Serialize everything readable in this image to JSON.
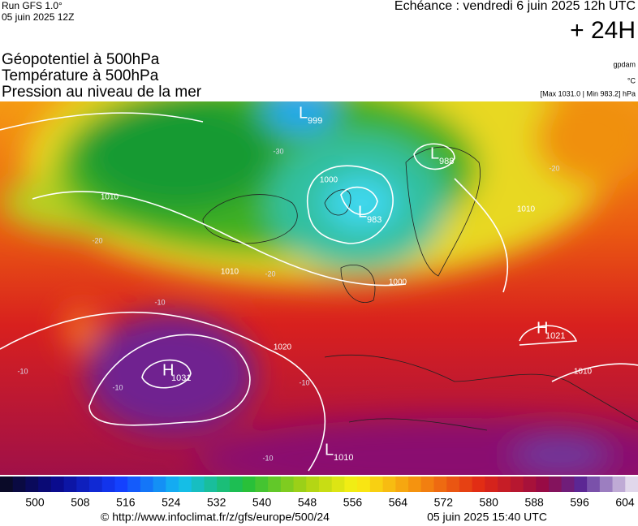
{
  "header": {
    "run": "Run GFS 1.0°",
    "run_date": "05 juin 2025 12Z",
    "echeance": "Echéance : vendredi 6 juin 2025 12h UTC",
    "lead": "+ 24H"
  },
  "legend": {
    "fields": [
      "Géopotentiel à 500hPa",
      "Température à 500hPa",
      "Pression au niveau de la mer"
    ],
    "units": [
      "gpdam",
      "°C",
      "[Max 1031.0 | Min 983.2] hPa"
    ]
  },
  "map": {
    "centers": [
      {
        "letter": "L",
        "value": "999"
      },
      {
        "letter": "L",
        "value": "988"
      },
      {
        "letter": "L",
        "value": "983"
      },
      {
        "letter": "H",
        "value": "1031"
      },
      {
        "letter": "H",
        "value": "1021"
      },
      {
        "letter": "L",
        "value": "1010"
      }
    ],
    "isobar_labels": [
      "1010",
      "1000",
      "1020",
      "1010",
      "1000",
      "1010",
      "1010"
    ],
    "temp_labels": [
      "-30",
      "-20",
      "-20",
      "-20",
      "-10",
      "-10",
      "-10",
      "-10",
      "-10"
    ]
  },
  "colorbar": {
    "ticks": [
      500,
      508,
      516,
      524,
      532,
      540,
      548,
      556,
      564,
      572,
      580,
      588,
      596,
      604
    ]
  },
  "footer": {
    "url": "© http://www.infoclimat.fr/z/gfs/europe/500/24",
    "timestamp": "05 juin 2025 15:40 UTC"
  }
}
